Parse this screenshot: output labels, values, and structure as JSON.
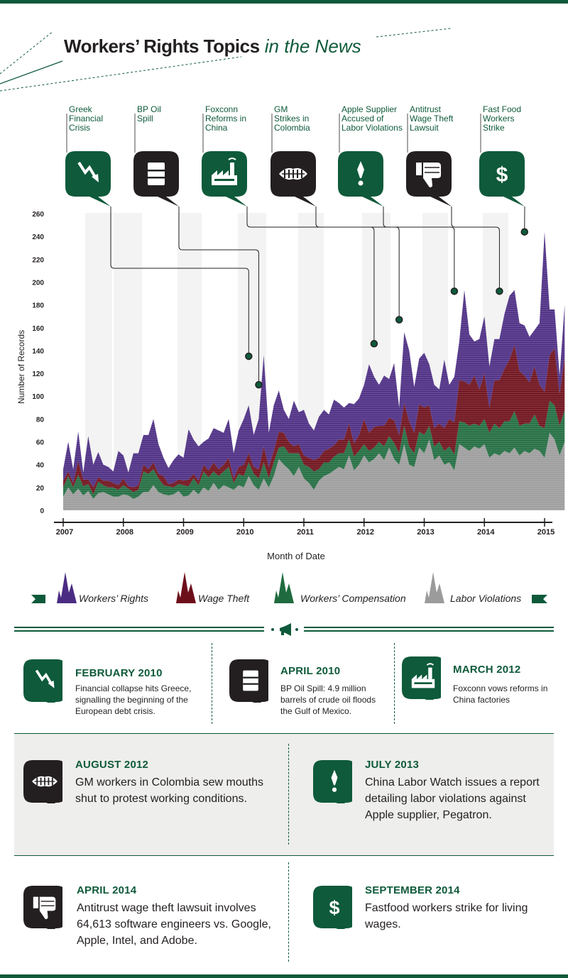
{
  "title": {
    "main": "Workers’ Rights Topics",
    "sub": "in the News"
  },
  "chart_data": {
    "type": "area",
    "stacked": true,
    "xlabel": "Month of Date",
    "ylabel": "Number of Records",
    "ylim": [
      0,
      260
    ],
    "yticks": [
      0,
      20,
      40,
      60,
      80,
      100,
      120,
      140,
      160,
      180,
      200,
      220,
      240,
      260
    ],
    "xticks": [
      "2007",
      "2008",
      "2009",
      "2010",
      "2011",
      "2012",
      "2013",
      "2014",
      "2015"
    ],
    "x_start": "2007-01",
    "series": [
      {
        "name": "Labor Violations",
        "color": "#9b9b9b",
        "values": [
          12,
          20,
          14,
          19,
          13,
          17,
          10,
          15,
          16,
          14,
          12,
          12,
          14,
          13,
          10,
          12,
          16,
          16,
          22,
          16,
          14,
          13,
          14,
          17,
          12,
          13,
          18,
          14,
          20,
          17,
          24,
          18,
          22,
          20,
          18,
          22,
          20,
          30,
          22,
          18,
          28,
          20,
          30,
          45,
          40,
          36,
          30,
          38,
          28,
          24,
          18,
          26,
          30,
          32,
          35,
          38,
          36,
          48,
          35,
          40,
          48,
          42,
          45,
          50,
          44,
          55,
          45,
          40,
          58,
          40,
          38,
          55,
          50,
          62,
          44,
          48,
          40,
          42,
          35,
          58,
          55,
          52,
          56,
          54,
          58,
          46,
          50,
          48,
          52,
          50,
          55,
          48,
          52,
          50,
          54,
          52,
          46,
          68,
          62,
          48,
          60
        ]
      },
      {
        "name": "Workers’ Compensation",
        "color": "#1f6b3f",
        "values": [
          8,
          10,
          6,
          12,
          8,
          6,
          4,
          10,
          6,
          6,
          8,
          6,
          8,
          6,
          6,
          6,
          18,
          16,
          14,
          12,
          8,
          8,
          6,
          6,
          10,
          8,
          10,
          8,
          14,
          12,
          10,
          12,
          12,
          18,
          6,
          10,
          10,
          12,
          10,
          10,
          14,
          8,
          12,
          10,
          16,
          14,
          20,
          12,
          12,
          14,
          16,
          10,
          12,
          10,
          12,
          12,
          14,
          14,
          12,
          12,
          10,
          10,
          10,
          10,
          12,
          10,
          14,
          10,
          16,
          16,
          12,
          14,
          16,
          12,
          12,
          12,
          12,
          14,
          14,
          20,
          22,
          22,
          20,
          20,
          22,
          22,
          26,
          24,
          26,
          28,
          32,
          26,
          24,
          26,
          30,
          22,
          26,
          28,
          30,
          26,
          28
        ]
      },
      {
        "name": "Wage Theft",
        "color": "#6d0f1a",
        "values": [
          6,
          4,
          4,
          12,
          6,
          4,
          6,
          4,
          4,
          6,
          4,
          4,
          6,
          2,
          4,
          4,
          6,
          4,
          6,
          4,
          8,
          2,
          4,
          4,
          4,
          6,
          4,
          4,
          6,
          6,
          8,
          6,
          6,
          8,
          4,
          6,
          10,
          8,
          6,
          8,
          14,
          10,
          10,
          14,
          12,
          10,
          6,
          8,
          8,
          8,
          10,
          10,
          10,
          12,
          10,
          12,
          12,
          14,
          12,
          14,
          22,
          16,
          18,
          14,
          18,
          16,
          20,
          16,
          20,
          22,
          18,
          24,
          24,
          18,
          16,
          16,
          20,
          24,
          28,
          36,
          36,
          36,
          42,
          32,
          40,
          22,
          38,
          42,
          46,
          54,
          58,
          48,
          42,
          36,
          42,
          36,
          32,
          40,
          50,
          28,
          46
        ]
      },
      {
        "name": "Workers’ Rights",
        "color": "#4b2c83",
        "values": [
          10,
          26,
          12,
          26,
          6,
          38,
          20,
          22,
          14,
          12,
          10,
          30,
          20,
          12,
          30,
          28,
          26,
          30,
          38,
          26,
          16,
          14,
          20,
          22,
          20,
          44,
          30,
          30,
          20,
          28,
          30,
          34,
          28,
          34,
          22,
          32,
          40,
          42,
          28,
          44,
          80,
          30,
          40,
          36,
          20,
          20,
          40,
          28,
          40,
          30,
          26,
          36,
          36,
          30,
          40,
          32,
          28,
          18,
          34,
          32,
          30,
          60,
          44,
          36,
          44,
          34,
          50,
          24,
          62,
          62,
          40,
          40,
          48,
          36,
          38,
          30,
          60,
          30,
          40,
          34,
          80,
          44,
          30,
          44,
          50,
          36,
          36,
          36,
          48,
          56,
          48,
          42,
          44,
          40,
          32,
          54,
          140,
          40,
          34,
          16,
          46
        ]
      }
    ],
    "colors": {
      "workers_rights": "#4b2c83",
      "wage_theft": "#6d0f1a",
      "workers_comp": "#1f6b3f",
      "labor_violations": "#9b9b9b"
    }
  },
  "events": [
    {
      "label": "Greek\nFinancial\nCrisis",
      "icon": "falling-arrow-icon",
      "style": "green",
      "date": "2010-02",
      "total": 135
    },
    {
      "label": "BP Oil\nSpill",
      "icon": "oil-barrel-icon",
      "style": "black",
      "date": "2010-04",
      "total": 110
    },
    {
      "label": "Foxconn\nReforms in\nChina",
      "icon": "factory-icon",
      "style": "green",
      "date": "2012-03",
      "total": 146
    },
    {
      "label": "GM\nStrikes in\nColombia",
      "icon": "sewn-mouth-icon",
      "style": "black",
      "date": "2012-08",
      "total": 167
    },
    {
      "label": "Apple Supplier\nAccused of\nLabor Violations",
      "icon": "exclamation-icon",
      "style": "green",
      "date": "2013-07",
      "total": 192
    },
    {
      "label": "Antitrust\nWage Theft\nLawsuit",
      "icon": "thumbs-down-icon",
      "style": "black",
      "date": "2014-04",
      "total": 192
    },
    {
      "label": "Fast Food\nWorkers\nStrike",
      "icon": "dollar-icon",
      "style": "green",
      "date": "2014-09",
      "total": 244
    }
  ],
  "legend": [
    "Workers’ Rights",
    "Wage Theft",
    "Workers’ Compensation",
    "Labor Violations"
  ],
  "cards": [
    {
      "date": "FEBRUARY 2010",
      "text": "Financial collapse hits Greece, signalling the beginning of the European debt crisis.",
      "icon": "falling-arrow-icon"
    },
    {
      "date": "APRIL 2010",
      "text": "BP Oil Spill: 4.9 million barrels of crude oil floods the Gulf of Mexico.",
      "icon": "oil-barrel-icon"
    },
    {
      "date": "MARCH 2012",
      "text": "Foxconn vows reforms in China factories",
      "icon": "factory-icon"
    },
    {
      "date": "AUGUST 2012",
      "text": "GM workers in Colombia sew mouths shut to protest working conditions.",
      "icon": "sewn-mouth-icon"
    },
    {
      "date": "JULY 2013",
      "text": "China Labor Watch issues a report detailing labor violations against Apple supplier, Pegatron.",
      "icon": "exclamation-icon"
    },
    {
      "date": "APRIL 2014",
      "text": "Antitrust wage theft lawsuit involves 64,613 software engineers vs. Google, Apple, Intel, and Adobe.",
      "icon": "thumbs-down-icon"
    },
    {
      "date": "SEPTEMBER 2014",
      "text": "Fastfood workers strike for living wages.",
      "icon": "dollar-icon"
    }
  ]
}
